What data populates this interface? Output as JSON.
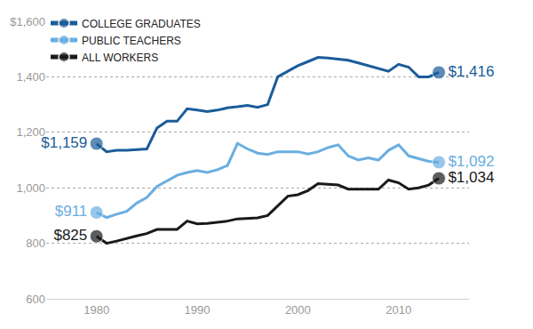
{
  "chart_data": {
    "type": "line",
    "x": [
      1980,
      1981,
      1982,
      1983,
      1984,
      1985,
      1986,
      1987,
      1988,
      1989,
      1990,
      1991,
      1992,
      1993,
      1994,
      1995,
      1996,
      1997,
      1998,
      1999,
      2000,
      2001,
      2002,
      2003,
      2004,
      2005,
      2006,
      2007,
      2008,
      2009,
      2010,
      2011,
      2012,
      2013,
      2014
    ],
    "series": [
      {
        "name": "COLLEGE GRADUATES",
        "color": "#1b5c99",
        "marker": "circle",
        "values": [
          1159,
          1130,
          1135,
          1135,
          1138,
          1140,
          1215,
          1240,
          1240,
          1285,
          1280,
          1275,
          1280,
          1288,
          1292,
          1297,
          1290,
          1300,
          1400,
          1420,
          1440,
          1455,
          1470,
          1468,
          1465,
          1460,
          1450,
          1440,
          1430,
          1420,
          1445,
          1435,
          1400,
          1400,
          1416
        ],
        "value_labels": [
          "$1,159",
          null,
          null,
          null,
          null,
          null,
          null,
          null,
          null,
          null,
          null,
          null,
          null,
          null,
          null,
          null,
          null,
          null,
          null,
          null,
          null,
          null,
          null,
          null,
          null,
          null,
          null,
          null,
          null,
          null,
          null,
          null,
          null,
          null,
          "$1,416"
        ]
      },
      {
        "name": "PUBLIC TEACHERS",
        "color": "#6aaee0",
        "marker": "circle",
        "values": [
          911,
          893,
          905,
          915,
          945,
          965,
          1005,
          1025,
          1045,
          1055,
          1062,
          1055,
          1065,
          1080,
          1160,
          1140,
          1125,
          1120,
          1130,
          1130,
          1130,
          1122,
          1130,
          1145,
          1155,
          1115,
          1100,
          1108,
          1100,
          1135,
          1155,
          1115,
          1105,
          1095,
          1092
        ],
        "value_labels": [
          "$911",
          null,
          null,
          null,
          null,
          null,
          null,
          null,
          null,
          null,
          null,
          null,
          null,
          null,
          null,
          null,
          null,
          null,
          null,
          null,
          null,
          null,
          null,
          null,
          null,
          null,
          null,
          null,
          null,
          null,
          null,
          null,
          null,
          null,
          "$1,092"
        ]
      },
      {
        "name": "ALL WORKERS",
        "color": "#1a1a1a",
        "marker": "circle",
        "values": [
          825,
          800,
          808,
          818,
          827,
          835,
          850,
          850,
          850,
          880,
          870,
          872,
          875,
          880,
          888,
          890,
          892,
          900,
          935,
          970,
          975,
          990,
          1015,
          1012,
          1010,
          995,
          995,
          995,
          995,
          1028,
          1018,
          995,
          1000,
          1010,
          1034
        ],
        "value_labels": [
          "$825",
          null,
          null,
          null,
          null,
          null,
          null,
          null,
          null,
          null,
          null,
          null,
          null,
          null,
          null,
          null,
          null,
          null,
          null,
          null,
          null,
          null,
          null,
          null,
          null,
          null,
          null,
          null,
          null,
          null,
          null,
          null,
          null,
          null,
          "$1,034"
        ]
      }
    ],
    "xlim": [
      1975,
      2017
    ],
    "xticks": [
      1980,
      1990,
      2000,
      2010
    ],
    "ylim": [
      600,
      1600
    ],
    "yticks": [
      600,
      800,
      {
        "value": 1000,
        "label": "1,000"
      },
      {
        "value": 1200,
        "label": "1,200"
      },
      {
        "value": 1400,
        "label": "1,400"
      },
      {
        "value": 1600,
        "label": "$1,600"
      }
    ],
    "grid": true,
    "legend": "top left",
    "data_labels": true
  }
}
